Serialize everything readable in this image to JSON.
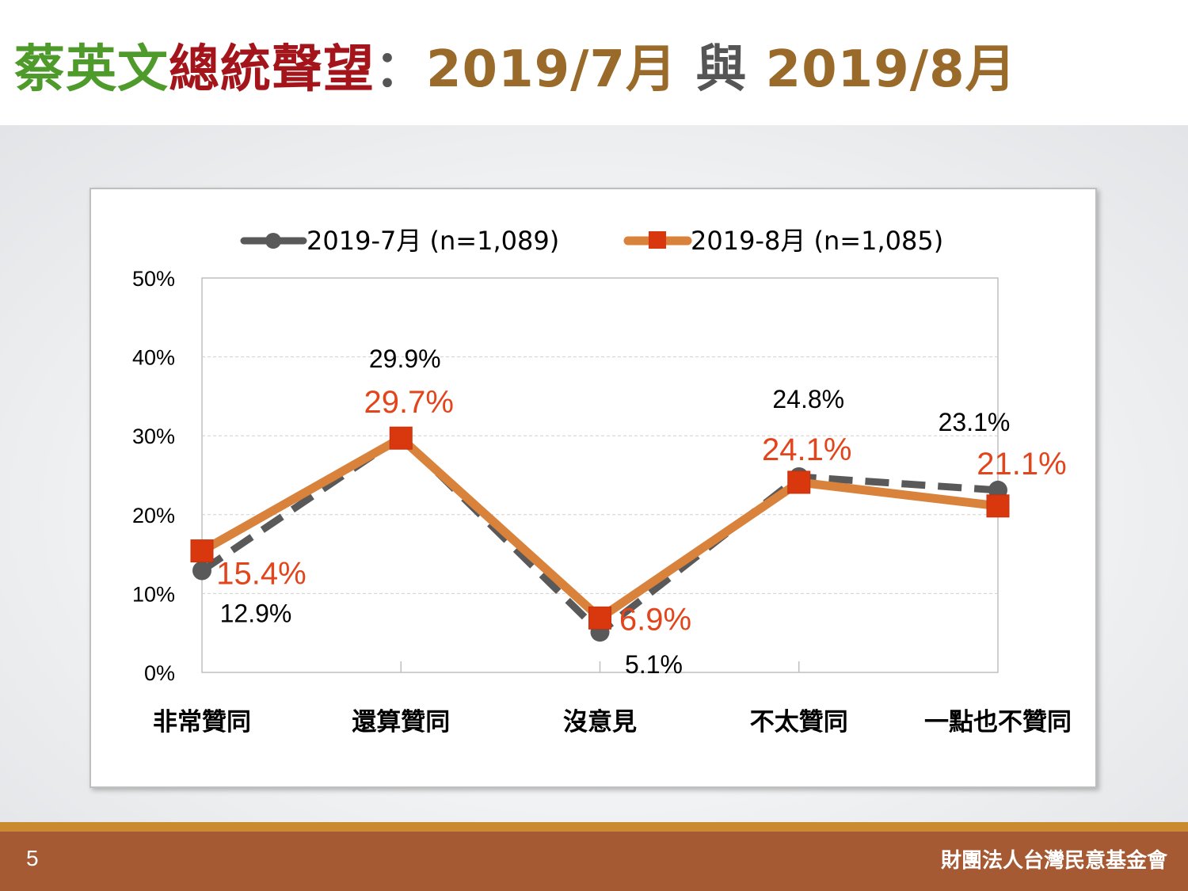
{
  "title": {
    "part1": "蔡英文",
    "part2": "總統聲望",
    "colon": "：",
    "part3": "2019/7月",
    "part4": "與",
    "part5": "2019/8月"
  },
  "footer": {
    "page_number": "5",
    "organization": "財團法人台灣民意基金會"
  },
  "colors": {
    "title_green": "#4e9a2b",
    "title_red": "#a3151b",
    "title_brown": "#9a6a2a",
    "series_jul": "#595959",
    "series_aug_line": "#d9823b",
    "series_aug_marker": "#d9380f",
    "aug_label": "#e2451c",
    "footer_bar": "#a55a33",
    "footer_stripe": "#c98a30"
  },
  "chart_data": {
    "type": "line",
    "categories": [
      "非常贊同",
      "還算贊同",
      "沒意見",
      "不太贊同",
      "一點也不贊同"
    ],
    "series": [
      {
        "name": "2019-7月  (n=1,089)",
        "values": [
          12.9,
          29.9,
          5.1,
          24.8,
          23.1
        ],
        "labels": [
          "12.9%",
          "29.9%",
          "5.1%",
          "24.8%",
          "23.1%"
        ],
        "style": "dashed",
        "marker": "circle"
      },
      {
        "name": "2019-8月  (n=1,085)",
        "values": [
          15.4,
          29.7,
          6.9,
          24.1,
          21.1
        ],
        "labels": [
          "15.4%",
          "29.7%",
          "6.9%",
          "24.1%",
          "21.1%"
        ],
        "style": "solid",
        "marker": "square"
      }
    ],
    "y_ticks": [
      "0%",
      "10%",
      "20%",
      "30%",
      "40%",
      "50%"
    ],
    "ylim": [
      0,
      50
    ],
    "ylabel": "",
    "xlabel": "",
    "grid": true,
    "legend_position": "top"
  }
}
